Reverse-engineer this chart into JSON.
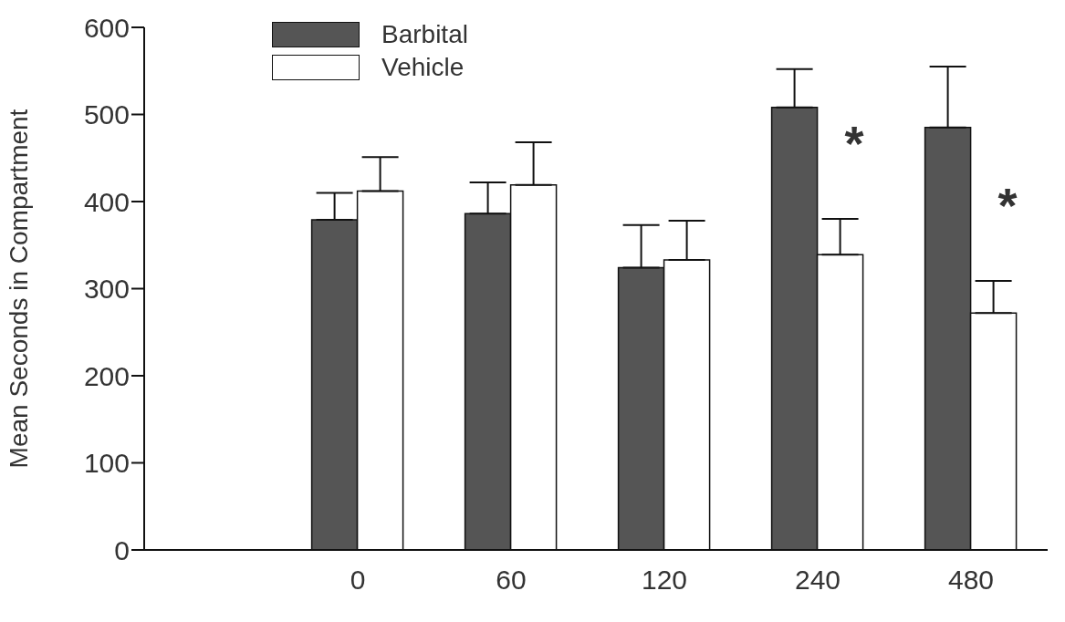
{
  "chart_data": {
    "type": "bar",
    "ylabel": "Mean Seconds in Compartment",
    "categories": [
      "0",
      "60",
      "120",
      "240",
      "480"
    ],
    "series": [
      {
        "name": "Barbital",
        "color": "#555555",
        "values": [
          379,
          386,
          324,
          508,
          485
        ],
        "errors": [
          [
            379,
            410
          ],
          [
            386,
            422
          ],
          [
            324,
            373
          ],
          [
            508,
            552
          ],
          [
            485,
            555
          ]
        ]
      },
      {
        "name": "Vehicle",
        "color": "#ffffff",
        "values": [
          412,
          419,
          333,
          339,
          272
        ],
        "errors": [
          [
            412,
            451
          ],
          [
            419,
            468
          ],
          [
            333,
            378
          ],
          [
            339,
            380
          ],
          [
            272,
            309
          ]
        ]
      }
    ],
    "ylim": [
      0,
      600
    ],
    "yticks": [
      0,
      100,
      200,
      300,
      400,
      500,
      600
    ],
    "grid": false,
    "legend": "top left",
    "annotations": [
      {
        "text": "*",
        "x": "240",
        "y": 482
      },
      {
        "text": "*",
        "x": "480",
        "y": 411
      }
    ]
  }
}
